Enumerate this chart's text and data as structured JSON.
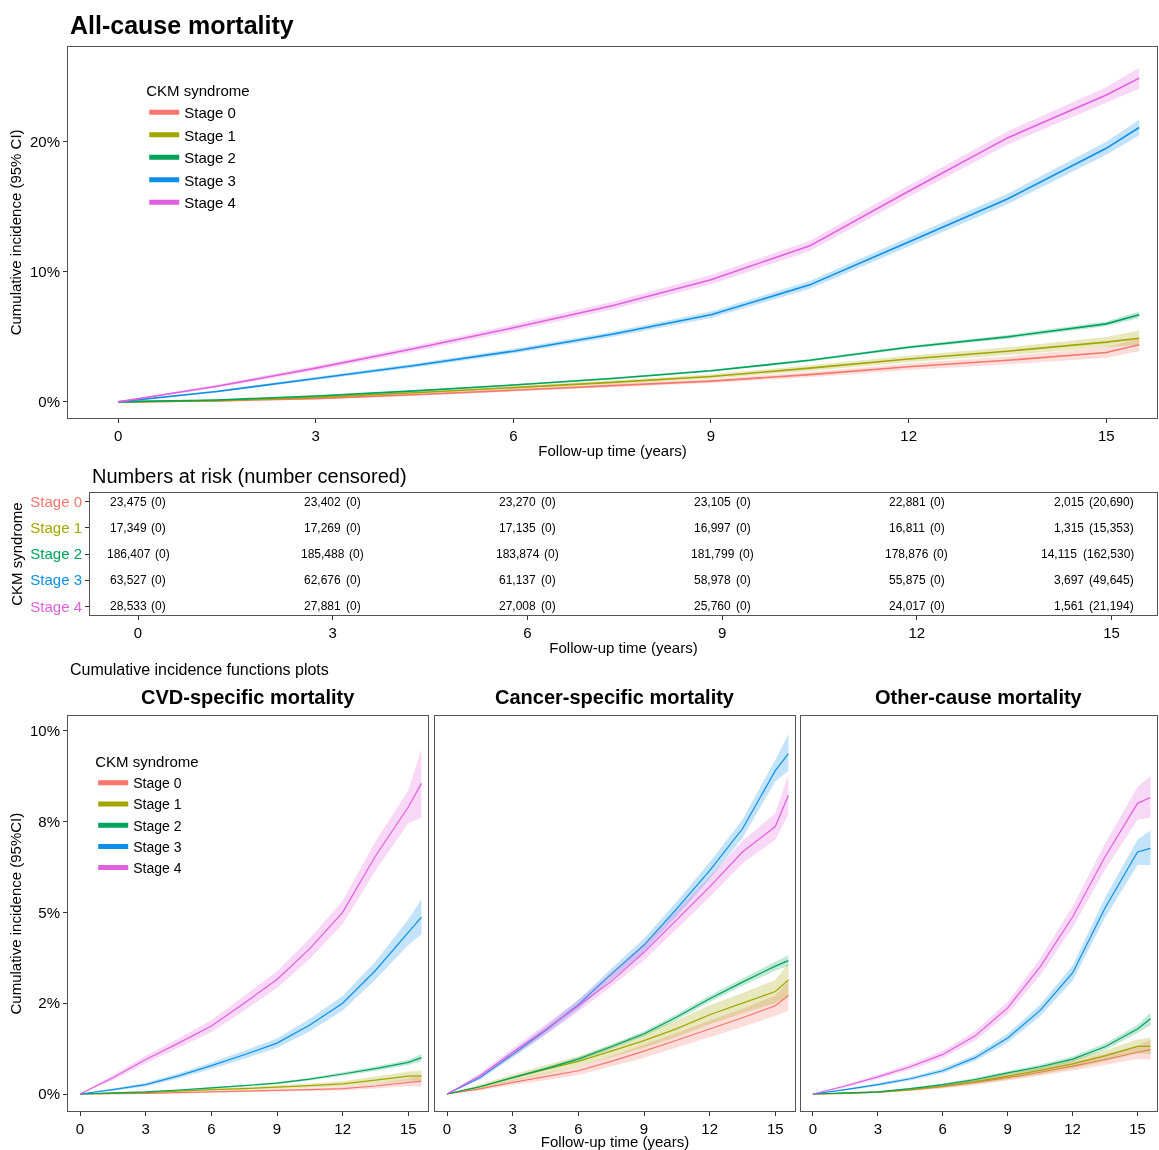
{
  "chart_data": [
    {
      "type": "line",
      "title": "All-cause mortality",
      "xlabel": "Follow-up time (years)",
      "ylabel": "Cumulative incidence (95% CI)",
      "legend_title": "CKM syndrome",
      "legend": "top left",
      "x": [
        0,
        1.5,
        3,
        4.5,
        6,
        7.5,
        9,
        10.5,
        12,
        13.5,
        15,
        15.5
      ],
      "xlim": [
        -0.76,
        15.77
      ],
      "xticks": [
        0,
        3,
        6,
        9,
        12,
        15
      ],
      "ylim": [
        -1.23,
        27.3
      ],
      "yticks": [
        {
          "value": 0,
          "label": "0%"
        },
        {
          "value": 10,
          "label": "10%"
        },
        {
          "value": 20,
          "label": "20%"
        }
      ],
      "series": [
        {
          "name": "Stage 0",
          "color": "#f8766d",
          "values": [
            0,
            0.08,
            0.25,
            0.55,
            0.9,
            1.25,
            1.6,
            2.1,
            2.7,
            3.2,
            3.8,
            4.4
          ],
          "lower": [
            0,
            0.06,
            0.2,
            0.48,
            0.8,
            1.12,
            1.45,
            1.9,
            2.45,
            2.9,
            3.4,
            3.9
          ],
          "upper": [
            0,
            0.1,
            0.3,
            0.62,
            1.0,
            1.38,
            1.75,
            2.3,
            2.95,
            3.5,
            4.2,
            4.9
          ]
        },
        {
          "name": "Stage 1",
          "color": "#a3a500",
          "values": [
            0,
            0.1,
            0.35,
            0.7,
            1.1,
            1.5,
            1.95,
            2.6,
            3.3,
            3.9,
            4.6,
            4.9
          ],
          "lower": [
            0,
            0.08,
            0.28,
            0.6,
            0.98,
            1.35,
            1.78,
            2.38,
            3.05,
            3.6,
            4.2,
            4.4
          ],
          "upper": [
            0,
            0.12,
            0.42,
            0.8,
            1.22,
            1.65,
            2.12,
            2.82,
            3.55,
            4.2,
            5.0,
            5.5
          ]
        },
        {
          "name": "Stage 2",
          "color": "#00a35c",
          "values": [
            0,
            0.15,
            0.45,
            0.85,
            1.3,
            1.8,
            2.4,
            3.2,
            4.2,
            5.0,
            6.0,
            6.7
          ],
          "lower": [
            0,
            0.13,
            0.41,
            0.8,
            1.24,
            1.73,
            2.32,
            3.1,
            4.08,
            4.85,
            5.82,
            6.45
          ],
          "upper": [
            0,
            0.17,
            0.49,
            0.9,
            1.36,
            1.87,
            2.48,
            3.3,
            4.32,
            5.15,
            6.18,
            6.95
          ]
        },
        {
          "name": "Stage 3",
          "color": "#0d8fe8",
          "values": [
            0,
            0.8,
            1.8,
            2.8,
            3.9,
            5.2,
            6.7,
            9.0,
            12.3,
            15.6,
            19.5,
            21.1
          ],
          "lower": [
            0,
            0.72,
            1.68,
            2.65,
            3.72,
            5.0,
            6.45,
            8.7,
            11.95,
            15.2,
            19.0,
            20.5
          ],
          "upper": [
            0,
            0.88,
            1.92,
            2.95,
            4.08,
            5.4,
            6.95,
            9.3,
            12.65,
            16.0,
            20.0,
            21.7
          ]
        },
        {
          "name": "Stage 4",
          "color": "#e25fe0",
          "values": [
            0,
            1.2,
            2.6,
            4.1,
            5.7,
            7.4,
            9.4,
            12.0,
            16.2,
            20.3,
            23.6,
            24.9
          ],
          "lower": [
            0,
            1.08,
            2.42,
            3.88,
            5.45,
            7.1,
            9.05,
            11.6,
            15.75,
            19.8,
            23.0,
            24.1
          ],
          "upper": [
            0,
            1.32,
            2.78,
            4.32,
            5.95,
            7.7,
            9.75,
            12.4,
            16.65,
            20.8,
            24.2,
            25.7
          ]
        }
      ]
    },
    {
      "type": "heatmap",
      "title": "Numbers at risk (number censored)",
      "xlabel": "Follow-up time (years)",
      "ylabel": "CKM syndrome",
      "x": [
        0,
        3,
        6,
        9,
        12,
        15
      ],
      "xlim": [
        -0.74,
        15.7
      ],
      "xticks": [
        0,
        3,
        6,
        9,
        12,
        15
      ],
      "y_categories": [
        "Stage 0",
        "Stage 1",
        "Stage 2",
        "Stage 3",
        "Stage 4"
      ],
      "colors": [
        "#f8766d",
        "#a3a500",
        "#00a35c",
        "#0d8fe8",
        "#e25fe0"
      ],
      "cells": [
        [
          23475,
          23402,
          23270,
          23105,
          22881,
          2015
        ],
        [
          17349,
          17269,
          17135,
          16997,
          16811,
          1315
        ],
        [
          186407,
          185488,
          183874,
          181799,
          178876,
          14115
        ],
        [
          63527,
          62676,
          61137,
          58978,
          55875,
          3697
        ],
        [
          28533,
          27881,
          27008,
          25760,
          24017,
          1561
        ]
      ],
      "cell_labels": [
        [
          "23,475",
          "23,402",
          "23,270",
          "23,105",
          "22,881",
          "2,015"
        ],
        [
          "17,349",
          "17,269",
          "17,135",
          "16,997",
          "16,811",
          "1,315"
        ],
        [
          "186,407",
          "185,488",
          "183,874",
          "181,799",
          "178,876",
          "14,115"
        ],
        [
          "63,527",
          "62,676",
          "61,137",
          "58,978",
          "55,875",
          "3,697"
        ],
        [
          "28,533",
          "27,881",
          "27,008",
          "25,760",
          "24,017",
          "1,561"
        ]
      ],
      "annotations": [
        "(0)",
        "(0)",
        "(0)",
        "(0)",
        "(0)",
        "(20,690)",
        "(0)",
        "(0)",
        "(0)",
        "(0)",
        "(0)",
        "(15,353)",
        "(0)",
        "(0)",
        "(0)",
        "(0)",
        "(0)",
        "(162,530)",
        "(0)",
        "(0)",
        "(0)",
        "(0)",
        "(0)",
        "(49,645)",
        "(0)",
        "(0)",
        "(0)",
        "(0)",
        "(0)",
        "(21,194)"
      ]
    },
    {
      "type": "line",
      "title": "CVD-specific mortality",
      "ylabel": "Cumulative incidence (95%CI)",
      "legend_title": "CKM syndrome",
      "legend": "top left",
      "annotations": [
        "Cumulative incidence functions plots"
      ],
      "x": [
        0,
        1.5,
        3,
        4.5,
        6,
        7.5,
        9,
        10.5,
        12,
        13.5,
        15,
        15.6
      ],
      "xlim": [
        -0.55,
        15.9
      ],
      "xticks": [
        0,
        3,
        6,
        9,
        12,
        15
      ],
      "ylim": [
        -0.47,
        10.4
      ],
      "yticks": [
        {
          "value": 0,
          "label": "0%"
        },
        {
          "value": 2.5,
          "label": "2%"
        },
        {
          "value": 5,
          "label": "5%"
        },
        {
          "value": 7.5,
          "label": "8%"
        },
        {
          "value": 10,
          "label": "10%"
        }
      ],
      "series": [
        {
          "name": "Stage 0",
          "color": "#f8766d",
          "values": [
            0,
            0.01,
            0.02,
            0.04,
            0.06,
            0.08,
            0.1,
            0.12,
            0.15,
            0.22,
            0.32,
            0.35
          ],
          "lower": [
            0,
            0.005,
            0.01,
            0.03,
            0.04,
            0.05,
            0.07,
            0.08,
            0.1,
            0.15,
            0.22,
            0.2
          ],
          "upper": [
            0,
            0.015,
            0.03,
            0.05,
            0.08,
            0.11,
            0.13,
            0.16,
            0.2,
            0.29,
            0.42,
            0.5
          ]
        },
        {
          "name": "Stage 1",
          "color": "#a3a500",
          "values": [
            0,
            0.02,
            0.04,
            0.08,
            0.12,
            0.15,
            0.19,
            0.23,
            0.28,
            0.38,
            0.49,
            0.5
          ],
          "lower": [
            0,
            0.01,
            0.03,
            0.06,
            0.09,
            0.11,
            0.14,
            0.17,
            0.21,
            0.28,
            0.37,
            0.35
          ],
          "upper": [
            0,
            0.03,
            0.05,
            0.1,
            0.15,
            0.19,
            0.24,
            0.29,
            0.35,
            0.48,
            0.61,
            0.65
          ]
        },
        {
          "name": "Stage 2",
          "color": "#00a35c",
          "values": [
            0,
            0.03,
            0.06,
            0.11,
            0.17,
            0.23,
            0.3,
            0.41,
            0.55,
            0.7,
            0.87,
            1.0
          ],
          "lower": [
            0,
            0.02,
            0.05,
            0.1,
            0.15,
            0.21,
            0.27,
            0.37,
            0.5,
            0.64,
            0.8,
            0.9
          ],
          "upper": [
            0,
            0.04,
            0.07,
            0.12,
            0.19,
            0.25,
            0.33,
            0.45,
            0.6,
            0.76,
            0.94,
            1.1
          ]
        },
        {
          "name": "Stage 3",
          "color": "#0d8fe8",
          "values": [
            0,
            0.12,
            0.26,
            0.5,
            0.78,
            1.08,
            1.4,
            1.9,
            2.5,
            3.4,
            4.45,
            4.87
          ],
          "lower": [
            0,
            0.09,
            0.21,
            0.43,
            0.69,
            0.97,
            1.27,
            1.73,
            2.3,
            3.15,
            4.1,
            4.4
          ],
          "upper": [
            0,
            0.15,
            0.31,
            0.57,
            0.87,
            1.19,
            1.53,
            2.07,
            2.7,
            3.65,
            4.8,
            5.35
          ]
        },
        {
          "name": "Stage 4",
          "color": "#e25fe0",
          "values": [
            0,
            0.45,
            0.95,
            1.4,
            1.87,
            2.5,
            3.15,
            4.0,
            5.0,
            6.55,
            7.9,
            8.55
          ],
          "lower": [
            0,
            0.38,
            0.85,
            1.27,
            1.71,
            2.3,
            2.92,
            3.72,
            4.68,
            6.15,
            7.45,
            7.6
          ],
          "upper": [
            0,
            0.52,
            1.05,
            1.53,
            2.03,
            2.7,
            3.38,
            4.28,
            5.32,
            6.95,
            8.35,
            9.5
          ]
        }
      ]
    },
    {
      "type": "line",
      "title": "Cancer-specific mortality",
      "xlabel": "Follow-up time (years)",
      "tick_labels": "x",
      "x": [
        0,
        1.5,
        3,
        4.5,
        6,
        7.5,
        9,
        10.5,
        12,
        13.5,
        15,
        15.6
      ],
      "xlim": [
        -0.55,
        15.9
      ],
      "xticks": [
        0,
        3,
        6,
        9,
        12,
        15
      ],
      "ylim": [
        -0.47,
        10.4
      ],
      "series": [
        {
          "color": "#f8766d",
          "values": [
            0,
            0.14,
            0.32,
            0.48,
            0.64,
            0.9,
            1.18,
            1.48,
            1.79,
            2.1,
            2.43,
            2.71
          ],
          "lower": [
            0,
            0.1,
            0.25,
            0.38,
            0.52,
            0.76,
            1.0,
            1.28,
            1.56,
            1.85,
            2.15,
            2.3
          ],
          "upper": [
            0,
            0.18,
            0.39,
            0.58,
            0.76,
            1.04,
            1.36,
            1.68,
            2.02,
            2.35,
            2.71,
            3.1
          ]
        },
        {
          "color": "#a3a500",
          "values": [
            0,
            0.2,
            0.45,
            0.68,
            0.9,
            1.18,
            1.47,
            1.8,
            2.18,
            2.5,
            2.82,
            3.14
          ],
          "lower": [
            0,
            0.14,
            0.36,
            0.56,
            0.76,
            1.01,
            1.27,
            1.57,
            1.92,
            2.22,
            2.5,
            2.7
          ],
          "upper": [
            0,
            0.26,
            0.54,
            0.8,
            1.04,
            1.35,
            1.67,
            2.03,
            2.44,
            2.78,
            3.14,
            3.6
          ]
        },
        {
          "color": "#00a35c",
          "values": [
            0,
            0.2,
            0.45,
            0.7,
            0.96,
            1.3,
            1.66,
            2.12,
            2.62,
            3.08,
            3.52,
            3.67
          ],
          "lower": [
            0,
            0.18,
            0.42,
            0.66,
            0.91,
            1.24,
            1.59,
            2.04,
            2.53,
            2.98,
            3.4,
            3.52
          ],
          "upper": [
            0,
            0.22,
            0.48,
            0.74,
            1.01,
            1.36,
            1.73,
            2.2,
            2.71,
            3.18,
            3.64,
            3.82
          ]
        },
        {
          "color": "#0d8fe8",
          "values": [
            0,
            0.45,
            1.09,
            1.75,
            2.46,
            3.3,
            4.1,
            5.1,
            6.15,
            7.3,
            8.9,
            9.37
          ],
          "lower": [
            0,
            0.4,
            1.0,
            1.64,
            2.33,
            3.15,
            3.92,
            4.9,
            5.92,
            7.05,
            8.6,
            8.9
          ],
          "upper": [
            0,
            0.5,
            1.18,
            1.86,
            2.59,
            3.45,
            4.28,
            5.3,
            6.38,
            7.55,
            9.2,
            9.9
          ]
        },
        {
          "color": "#e25fe0",
          "values": [
            0,
            0.5,
            1.15,
            1.77,
            2.43,
            3.1,
            3.9,
            4.8,
            5.7,
            6.66,
            7.36,
            8.22
          ],
          "lower": [
            0,
            0.43,
            1.04,
            1.63,
            2.27,
            2.96,
            3.68,
            4.55,
            5.42,
            6.35,
            7.0,
            7.7
          ],
          "upper": [
            0,
            0.57,
            1.26,
            1.91,
            2.59,
            3.34,
            4.12,
            5.05,
            5.98,
            6.97,
            7.72,
            8.8
          ]
        }
      ]
    },
    {
      "type": "line",
      "title": "Other-cause mortality",
      "tick_labels": "x",
      "x": [
        0,
        1.5,
        3,
        4.5,
        6,
        7.5,
        9,
        10.5,
        12,
        13.5,
        15,
        15.6
      ],
      "xlim": [
        -0.55,
        15.9
      ],
      "xticks": [
        0,
        3,
        6,
        9,
        12,
        15
      ],
      "ylim": [
        -0.47,
        10.4
      ],
      "series": [
        {
          "color": "#f8766d",
          "values": [
            0,
            0.02,
            0.05,
            0.11,
            0.2,
            0.32,
            0.45,
            0.6,
            0.77,
            0.95,
            1.15,
            1.22
          ],
          "lower": [
            0,
            0.01,
            0.03,
            0.08,
            0.15,
            0.25,
            0.37,
            0.5,
            0.65,
            0.8,
            0.97,
            0.95
          ],
          "upper": [
            0,
            0.03,
            0.07,
            0.14,
            0.25,
            0.39,
            0.53,
            0.7,
            0.89,
            1.1,
            1.33,
            1.5
          ]
        },
        {
          "color": "#a3a500",
          "values": [
            0,
            0.02,
            0.05,
            0.12,
            0.22,
            0.34,
            0.49,
            0.65,
            0.83,
            1.05,
            1.31,
            1.31
          ],
          "lower": [
            0,
            0.01,
            0.03,
            0.09,
            0.17,
            0.27,
            0.4,
            0.54,
            0.7,
            0.9,
            1.12,
            1.1
          ],
          "upper": [
            0,
            0.03,
            0.07,
            0.15,
            0.27,
            0.41,
            0.58,
            0.76,
            0.96,
            1.2,
            1.5,
            1.55
          ]
        },
        {
          "color": "#00a35c",
          "values": [
            0,
            0.03,
            0.06,
            0.15,
            0.26,
            0.4,
            0.58,
            0.75,
            0.96,
            1.3,
            1.79,
            2.07
          ],
          "lower": [
            0,
            0.02,
            0.05,
            0.13,
            0.23,
            0.36,
            0.53,
            0.69,
            0.89,
            1.21,
            1.68,
            1.9
          ],
          "upper": [
            0,
            0.04,
            0.07,
            0.17,
            0.29,
            0.44,
            0.63,
            0.81,
            1.03,
            1.39,
            1.9,
            2.25
          ]
        },
        {
          "color": "#0d8fe8",
          "values": [
            0,
            0.12,
            0.26,
            0.42,
            0.64,
            1.0,
            1.54,
            2.3,
            3.33,
            5.12,
            6.66,
            6.76
          ],
          "lower": [
            0,
            0.1,
            0.22,
            0.37,
            0.57,
            0.91,
            1.42,
            2.14,
            3.12,
            4.85,
            6.3,
            6.3
          ],
          "upper": [
            0,
            0.14,
            0.3,
            0.47,
            0.71,
            1.09,
            1.66,
            2.46,
            3.54,
            5.4,
            7.0,
            7.25
          ]
        },
        {
          "color": "#e25fe0",
          "values": [
            0,
            0.22,
            0.47,
            0.75,
            1.09,
            1.6,
            2.37,
            3.5,
            4.87,
            6.53,
            8.0,
            8.16
          ],
          "lower": [
            0,
            0.18,
            0.41,
            0.67,
            0.99,
            1.47,
            2.2,
            3.27,
            4.58,
            6.17,
            7.55,
            7.6
          ],
          "upper": [
            0,
            0.26,
            0.53,
            0.83,
            1.19,
            1.73,
            2.54,
            3.73,
            5.16,
            6.89,
            8.45,
            8.75
          ]
        }
      ]
    }
  ]
}
